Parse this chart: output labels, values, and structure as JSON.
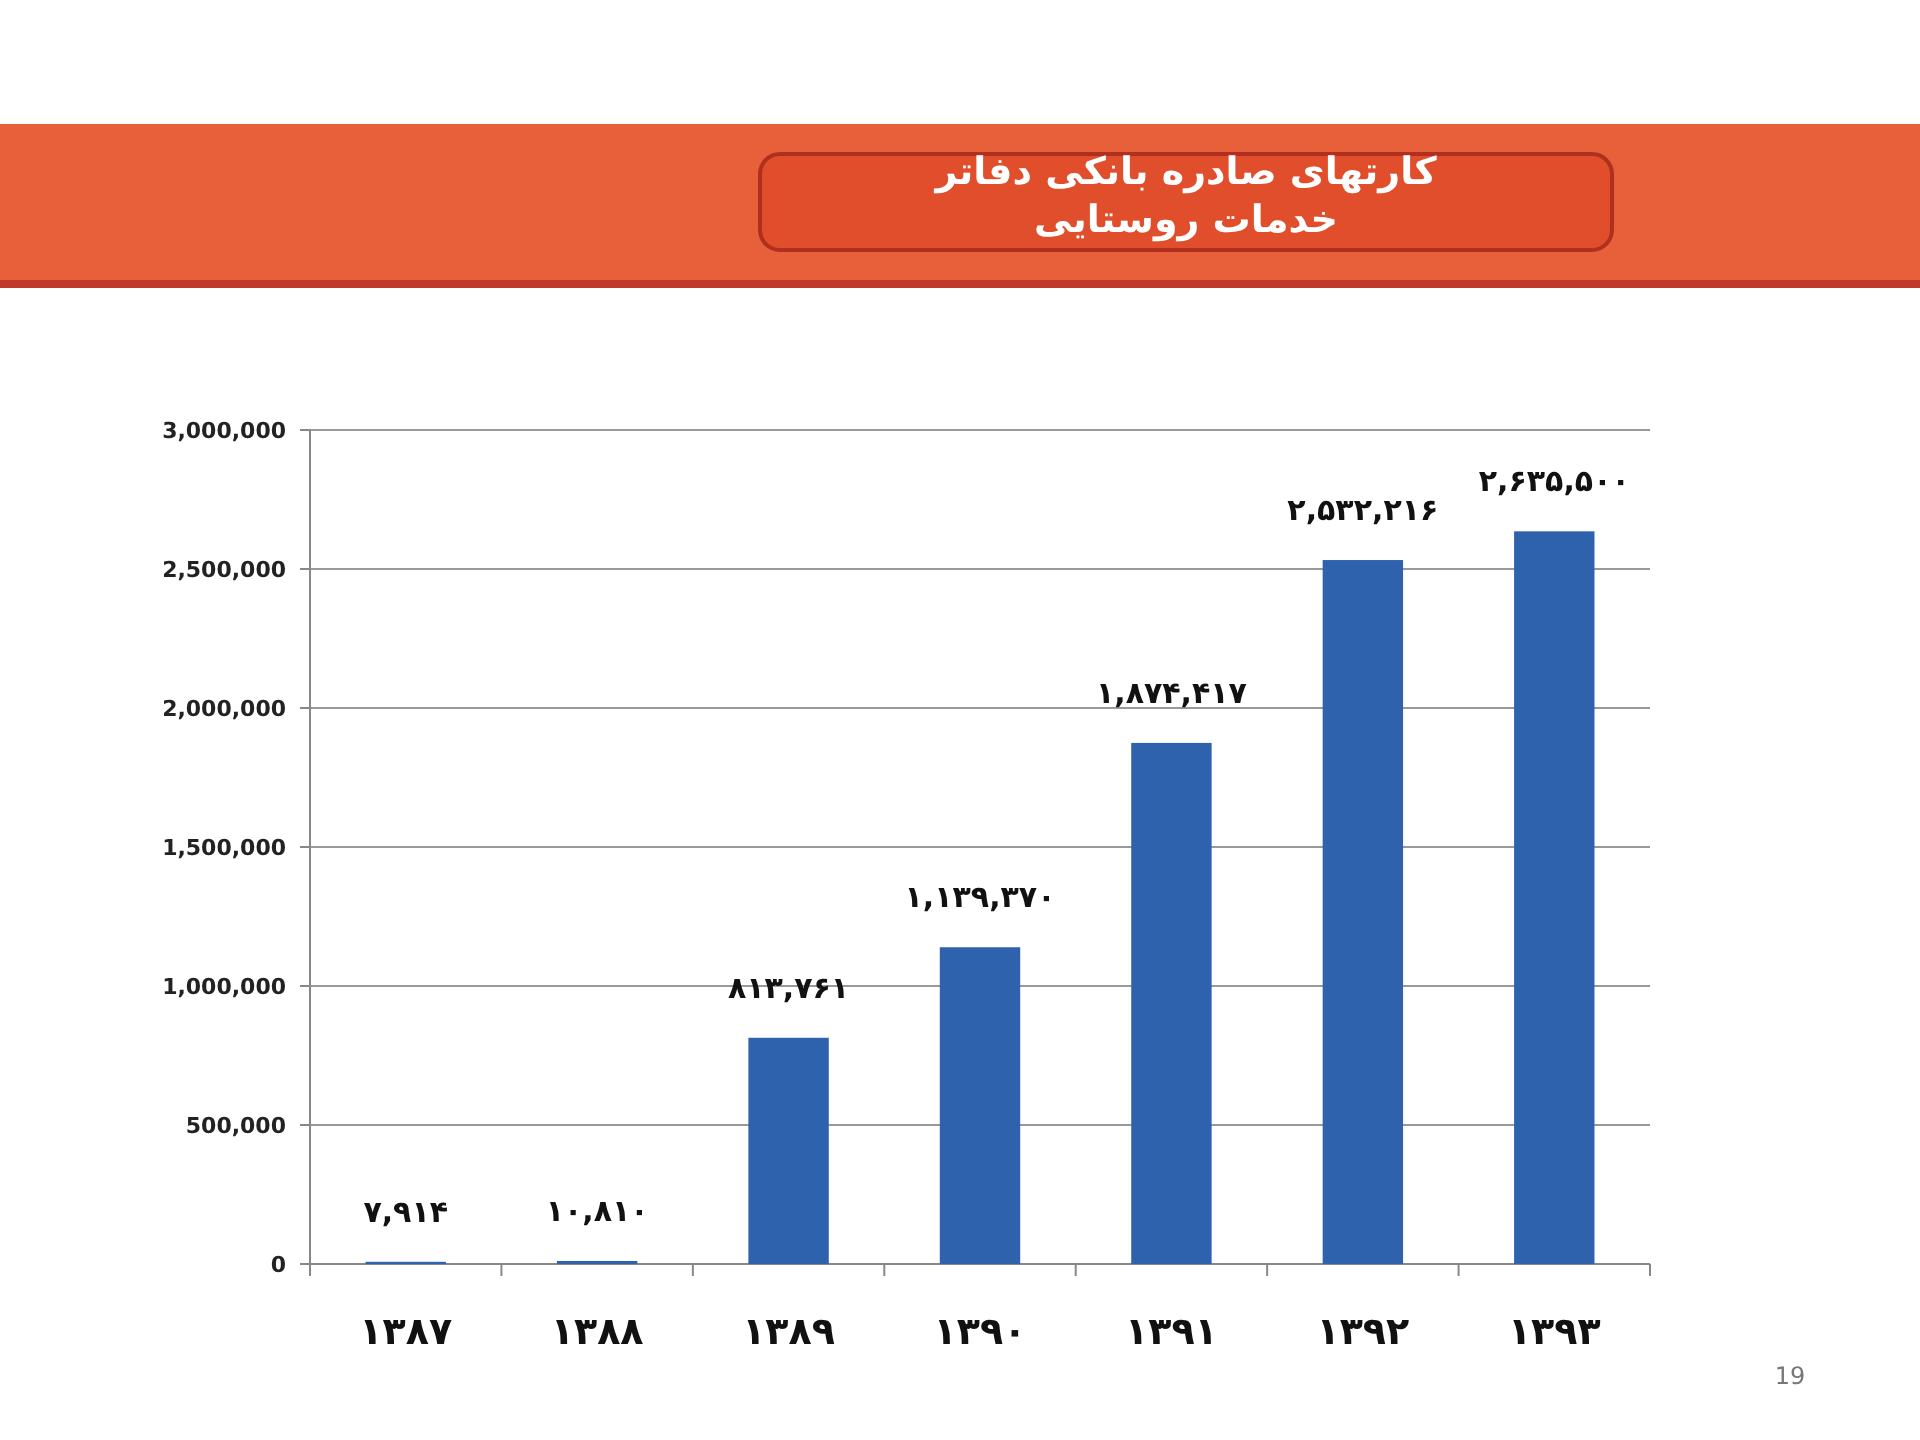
{
  "chart_data": {
    "type": "bar",
    "title": "کارتهای صادره بانکی دفاتر خدمات روستایی",
    "categories": [
      "۱۳۸۷",
      "۱۳۸۸",
      "۱۳۸۹",
      "۱۳۹۰",
      "۱۳۹۱",
      "۱۳۹۲",
      "۱۳۹۳"
    ],
    "values": [
      7914,
      10810,
      813761,
      1139370,
      1874417,
      2532216,
      2635500
    ],
    "value_labels": [
      "۷,۹۱۴",
      "۱۰,۸۱۰",
      "۸۱۳,۷۶۱",
      "۱,۱۳۹,۳۷۰",
      "۱,۸۷۴,۴۱۷",
      "۲,۵۳۲,۲۱۶",
      "۲,۶۳۵,۵۰۰"
    ],
    "color": "#2f62ad",
    "ylim": [
      0,
      3000000
    ],
    "yticks": [
      {
        "value": 0,
        "label": "0"
      },
      {
        "value": 500000,
        "label": "500,000"
      },
      {
        "value": 1000000,
        "label": "1,000,000"
      },
      {
        "value": 1500000,
        "label": "1,500,000"
      },
      {
        "value": 2000000,
        "label": "2,000,000"
      },
      {
        "value": 2500000,
        "label": "2,500,000"
      },
      {
        "value": 3000000,
        "label": "3,000,000"
      }
    ],
    "grid": "y",
    "annotations": [
      "19"
    ]
  }
}
